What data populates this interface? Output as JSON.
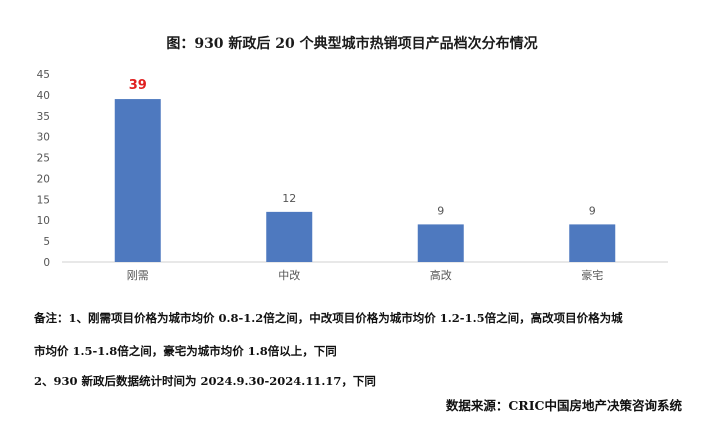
{
  "chart_data": {
    "type": "bar",
    "title": "图：930 新政后 20 个典型城市热销项目产品档次分布情况",
    "categories": [
      "刚需",
      "中改",
      "高改",
      "豪宅"
    ],
    "values": [
      39,
      12,
      9,
      9
    ],
    "ylim": [
      0,
      45
    ],
    "yticks": [
      0,
      5,
      10,
      15,
      20,
      25,
      30,
      35,
      40,
      45
    ],
    "bar_color": "#4e79bf",
    "highlight_label_color": "#e02020",
    "label_color": "#555555",
    "grid": false,
    "legend": "none"
  },
  "notes": {
    "line1": "备注：1、刚需项目价格为城市均价 0.8-1.2倍之间，中改项目价格为城市均价 1.2-1.5倍之间，高改项目价格为城",
    "line2": "市均价 1.5-1.8倍之间，豪宅为城市均价 1.8倍以上，下同",
    "line3": "2、930 新政后数据统计时间为 2024.9.30-2024.11.17，下同"
  },
  "source": "数据来源：CRIC中国房地产决策咨询系统"
}
